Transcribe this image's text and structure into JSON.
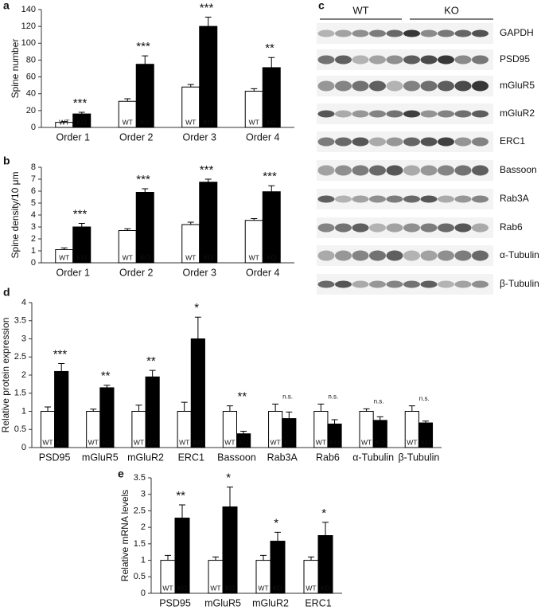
{
  "chart_data": [
    {
      "type": "bar",
      "panel": "a",
      "ylabel": "Spine number",
      "categories": [
        "Order 1",
        "Order 2",
        "Order 3",
        "Order 4"
      ],
      "series": [
        {
          "name": "WT",
          "color": "#ffffff",
          "values": [
            6,
            31,
            48,
            43
          ],
          "errors": [
            1,
            3,
            3,
            3
          ]
        },
        {
          "name": "KO",
          "color": "#000000",
          "values": [
            16,
            75,
            120,
            71
          ],
          "errors": [
            2,
            10,
            11,
            12
          ]
        }
      ],
      "annotations": [
        "***",
        "***",
        "***",
        "**"
      ],
      "ylim": [
        0,
        140
      ],
      "yticks": [
        0,
        20,
        40,
        60,
        80,
        100,
        120,
        140
      ]
    },
    {
      "type": "bar",
      "panel": "b",
      "ylabel": "Spine density/10 μm",
      "categories": [
        "Order 1",
        "Order 2",
        "Order 3",
        "Order 4"
      ],
      "series": [
        {
          "name": "WT",
          "color": "#ffffff",
          "values": [
            1.1,
            2.7,
            3.2,
            3.55
          ],
          "errors": [
            0.15,
            0.15,
            0.2,
            0.15
          ]
        },
        {
          "name": "KO",
          "color": "#000000",
          "values": [
            3.0,
            5.9,
            6.75,
            5.95
          ],
          "errors": [
            0.3,
            0.3,
            0.25,
            0.5
          ]
        }
      ],
      "annotations": [
        "***",
        "***",
        "***",
        "***"
      ],
      "ylim": [
        0,
        8
      ],
      "yticks": [
        0,
        1,
        2,
        3,
        4,
        5,
        6,
        7,
        8
      ]
    },
    {
      "type": "bar",
      "panel": "d",
      "ylabel": "Relative protein expression",
      "categories": [
        "PSD95",
        "mGluR5",
        "mGluR2",
        "ERC1",
        "Bassoon",
        "Rab3A",
        "Rab6",
        "α-Tubulin",
        "β-Tubulin"
      ],
      "series": [
        {
          "name": "WT",
          "color": "#ffffff",
          "values": [
            1,
            1,
            1,
            1,
            1,
            1,
            1,
            1,
            1
          ],
          "errors": [
            0.12,
            0.06,
            0.17,
            0.25,
            0.15,
            0.2,
            0.2,
            0.07,
            0.15
          ]
        },
        {
          "name": "KO",
          "color": "#000000",
          "values": [
            2.1,
            1.65,
            1.95,
            3.0,
            0.38,
            0.8,
            0.65,
            0.75,
            0.68
          ],
          "errors": [
            0.22,
            0.07,
            0.18,
            0.6,
            0.07,
            0.18,
            0.12,
            0.1,
            0.05
          ]
        }
      ],
      "annotations": [
        "***",
        "**",
        "**",
        "*",
        "**",
        "n.s.",
        "n.s.",
        "n.s.",
        "n.s."
      ],
      "ylim": [
        0,
        4
      ],
      "yticks": [
        0,
        0.5,
        1,
        1.5,
        2,
        2.5,
        3,
        3.5,
        4
      ]
    },
    {
      "type": "bar",
      "panel": "e",
      "ylabel": "Relative mRNA levels",
      "categories": [
        "PSD95",
        "mGluR5",
        "mGluR2",
        "ERC1"
      ],
      "series": [
        {
          "name": "WT",
          "color": "#ffffff",
          "values": [
            1,
            1,
            1,
            1
          ],
          "errors": [
            0.15,
            0.1,
            0.15,
            0.1
          ]
        },
        {
          "name": "KO",
          "color": "#000000",
          "values": [
            2.28,
            2.62,
            1.58,
            1.75
          ],
          "errors": [
            0.4,
            0.6,
            0.27,
            0.4
          ]
        }
      ],
      "annotations": [
        "**",
        "*",
        "*",
        "*"
      ],
      "ylim": [
        0,
        3.5
      ],
      "yticks": [
        0,
        0.5,
        1,
        1.5,
        2,
        2.5,
        3,
        3.5
      ]
    }
  ],
  "blot": {
    "panel": "c",
    "groups": [
      "WT",
      "KO"
    ],
    "bands": [
      "GAPDH",
      "PSD95",
      "mGluR5",
      "mGluR2",
      "ERC1",
      "Bassoon",
      "Rab3A",
      "Rab6",
      "α-Tubulin",
      "β-Tubulin"
    ]
  }
}
